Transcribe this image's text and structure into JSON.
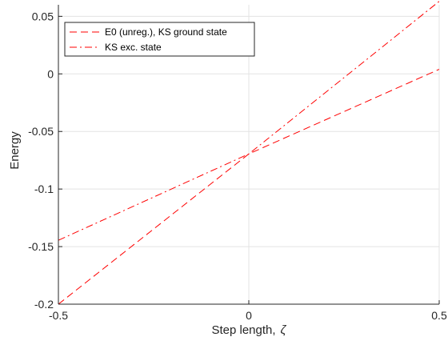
{
  "chart_data": {
    "type": "line",
    "xlabel_prefix": "Step length,",
    "xlabel_symbol": "ζ",
    "ylabel": "Energy",
    "xlim": [
      -0.5,
      0.5
    ],
    "ylim": [
      -0.2,
      0.06
    ],
    "xticks": [
      -0.5,
      0,
      0.5
    ],
    "xtick_labels": [
      "-0.5",
      "0",
      "0.5"
    ],
    "yticks": [
      -0.2,
      -0.15,
      -0.1,
      -0.05,
      0,
      0.05
    ],
    "ytick_labels": [
      "-0.2",
      "-0.15",
      "-0.1",
      "-0.05",
      "0",
      "0.05"
    ],
    "grid": true,
    "legend_position": "top-left",
    "series": [
      {
        "name": "E0 (unreg.), KS ground state",
        "color": "#ff0000",
        "style": "dashed",
        "x": [
          -0.5,
          0.0,
          0.5
        ],
        "y": [
          -0.2,
          -0.0695,
          0.004
        ]
      },
      {
        "name": "KS exc. state",
        "color": "#ff0000",
        "style": "dash-dot",
        "x": [
          -0.5,
          0.0,
          0.5
        ],
        "y": [
          -0.1445,
          -0.0695,
          0.063
        ]
      }
    ]
  }
}
